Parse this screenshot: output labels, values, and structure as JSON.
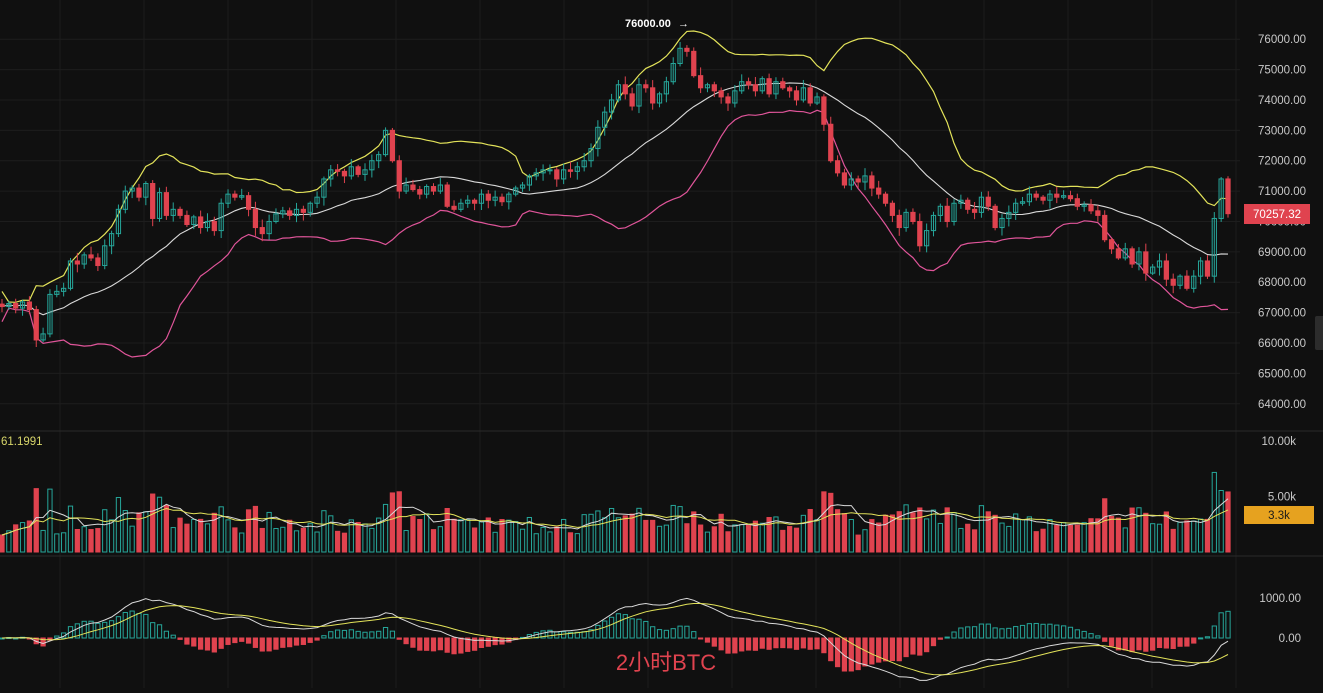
{
  "chart_data": {
    "type": "candlestick",
    "title": "2小时BTC",
    "price_axis": {
      "ticks": [
        "76000.00",
        "75000.00",
        "74000.00",
        "73000.00",
        "72000.00",
        "71000.00",
        "70000.00",
        "69000.00",
        "68000.00",
        "67000.00",
        "66000.00",
        "65000.00",
        "64000.00"
      ],
      "range": [
        63400,
        76500
      ]
    },
    "current_price": "70257.32",
    "high_marker": "76000.00",
    "indicator_value": "61.1991",
    "candles_close": [
      67200,
      67300,
      67150,
      67350,
      67100,
      66100,
      66300,
      67600,
      67700,
      67800,
      68700,
      68600,
      68900,
      68800,
      68550,
      69200,
      69600,
      70400,
      71000,
      71100,
      70800,
      71250,
      70100,
      70950,
      70200,
      70400,
      70200,
      69900,
      70150,
      69800,
      70000,
      69700,
      70600,
      70900,
      70800,
      70850,
      70400,
      69800,
      69600,
      70000,
      70250,
      70350,
      70200,
      70400,
      70300,
      70600,
      70800,
      71400,
      71700,
      71650,
      71500,
      71800,
      71550,
      71700,
      72000,
      72200,
      73000,
      72000,
      71000,
      71200,
      71050,
      70900,
      71150,
      71000,
      71200,
      70500,
      70400,
      70600,
      70700,
      70600,
      70900,
      70700,
      70800,
      70650,
      70900,
      71100,
      71200,
      71500,
      71600,
      71700,
      71700,
      71400,
      71700,
      71650,
      71800,
      72000,
      72400,
      73100,
      73600,
      74000,
      74500,
      74200,
      73800,
      74500,
      74400,
      73900,
      74200,
      74600,
      75200,
      75700,
      75600,
      74800,
      74400,
      74500,
      74300,
      74100,
      73900,
      74300,
      74600,
      74500,
      74300,
      74700,
      74200,
      74600,
      74400,
      74300,
      74000,
      74400,
      73900,
      74100,
      73200,
      72000,
      71600,
      71200,
      71400,
      71300,
      71500,
      71100,
      70900,
      70600,
      70200,
      69800,
      70300,
      70000,
      69200,
      69700,
      70200,
      70500,
      70000,
      70600,
      70700,
      70400,
      70300,
      70800,
      70500,
      69800,
      70100,
      70300,
      70600,
      70650,
      70900,
      70800,
      70700,
      70900,
      70800,
      70850,
      70750,
      70500,
      70550,
      70350,
      70200,
      69400,
      69100,
      68800,
      69100,
      68600,
      69000,
      68300,
      68500,
      68700,
      68100,
      67900,
      68200,
      67800,
      68200,
      68700,
      68200,
      70100,
      71400,
      70257.32
    ],
    "volume_axis": {
      "ticks": [
        "10.00k",
        "5.00k"
      ],
      "current": "3.3k"
    },
    "macd_axis": {
      "ticks": [
        "1000.00",
        "0.00"
      ]
    }
  }
}
